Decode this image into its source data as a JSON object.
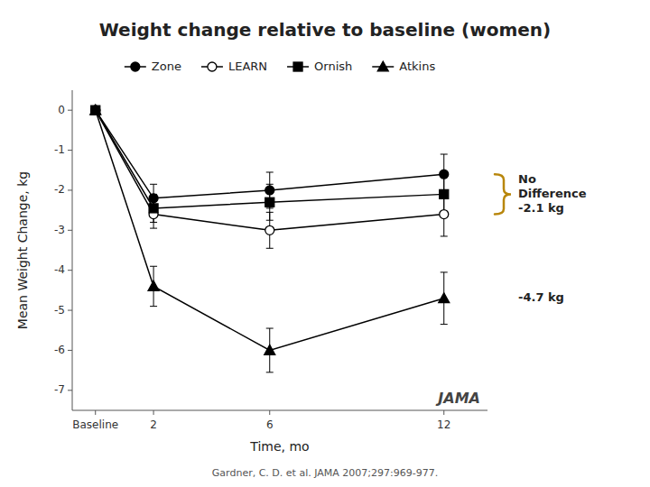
{
  "chart_data": {
    "type": "line",
    "title": "Weight change relative to baseline (women)",
    "x_label": "Time, mo",
    "y_label": "Mean Weight Change, kg",
    "x": [
      0,
      2,
      6,
      12
    ],
    "xlim": [
      -0.8,
      13.5
    ],
    "xticks": [
      {
        "value": 0,
        "label": "Baseline"
      },
      2,
      6,
      12
    ],
    "ylim": [
      -7.5,
      0.5
    ],
    "yticks": [
      0,
      -1,
      -2,
      -3,
      -4,
      -5,
      -6,
      -7
    ],
    "legend": "top",
    "series": [
      {
        "name": "Zone",
        "color": "#000000",
        "marker": "circle",
        "values": [
          0,
          -2.2,
          -2.0,
          -1.6
        ],
        "errors": [
          0.0,
          0.35,
          0.45,
          0.5
        ]
      },
      {
        "name": "LEARN",
        "color": "#000000",
        "marker": "open-circle",
        "values": [
          0,
          -2.6,
          -3.0,
          -2.6
        ],
        "errors": [
          0.0,
          0.35,
          0.45,
          0.55
        ]
      },
      {
        "name": "Ornish",
        "color": "#000000",
        "marker": "square",
        "values": [
          0,
          -2.45,
          -2.3,
          -2.1
        ],
        "errors": [
          0.0,
          0.35,
          0.45,
          0.5
        ]
      },
      {
        "name": "Atkins",
        "color": "#000000",
        "marker": "triangle",
        "values": [
          0,
          -4.4,
          -6.0,
          -4.7
        ],
        "errors": [
          0.0,
          0.5,
          0.55,
          0.65
        ]
      }
    ],
    "annotations": [
      {
        "text": "No\nDifference\n-2.1 kg",
        "y": [
          -2.6,
          -1.6
        ]
      },
      {
        "text": "-4.7 kg",
        "y": -4.7
      },
      {
        "text": "JAMA"
      }
    ],
    "source": "Gardner, C. D. et al. JAMA 2007;297:969-977."
  }
}
